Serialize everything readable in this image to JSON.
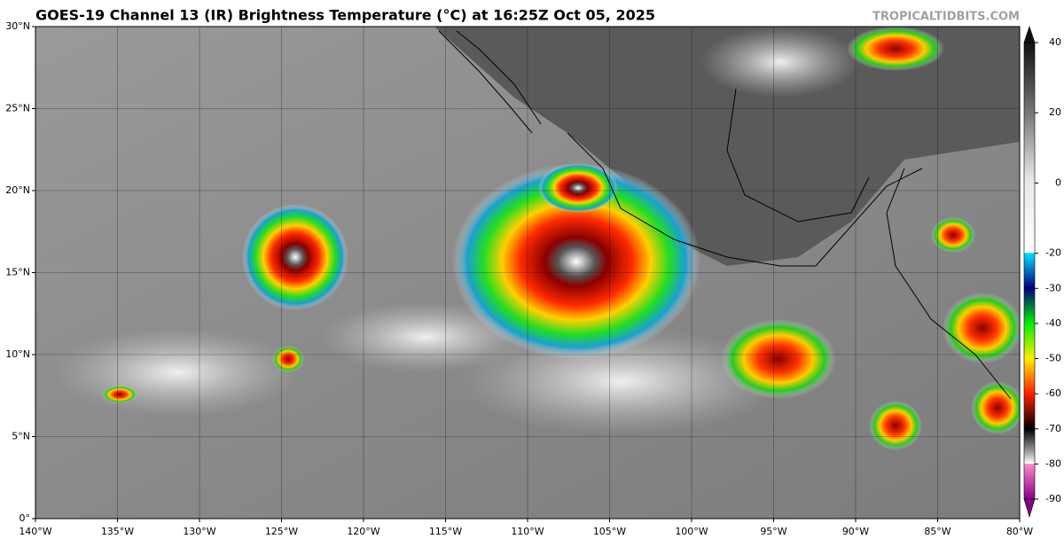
{
  "title": "GOES-19 Channel 13 (IR) Brightness Temperature (°C) at 16:25Z Oct 05, 2025",
  "credit": "TROPICALTIDBITS.COM",
  "map": {
    "lat_labels": [
      "30°N",
      "25°N",
      "20°N",
      "15°N",
      "10°N",
      "5°N",
      "0°"
    ],
    "lon_labels": [
      "140°W",
      "135°W",
      "130°W",
      "125°W",
      "120°W",
      "115°W",
      "110°W",
      "105°W",
      "100°W",
      "95°W",
      "90°W",
      "85°W",
      "80°W"
    ]
  },
  "colorbar": {
    "range": [
      -90,
      40
    ],
    "ticks": [
      40,
      20,
      0,
      -20,
      -30,
      -40,
      -50,
      -60,
      -70,
      -80,
      -90
    ]
  }
}
